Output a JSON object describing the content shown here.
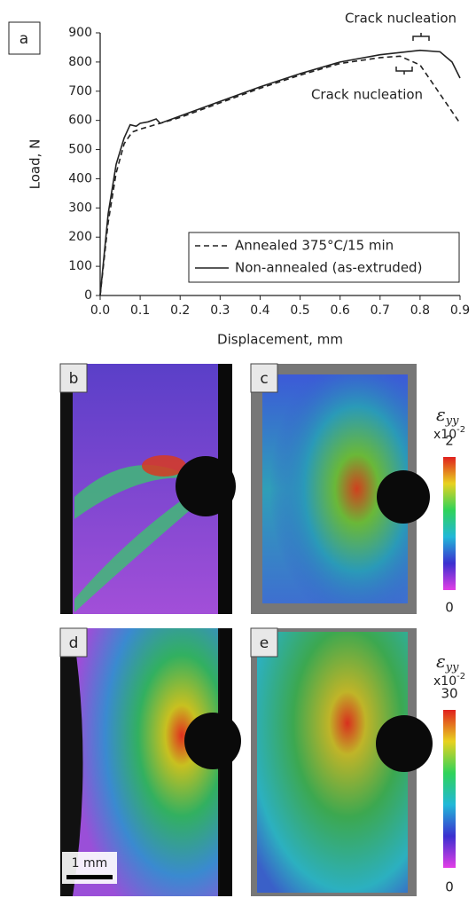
{
  "chart_data": {
    "type": "line",
    "panel_label": "a",
    "x_label": "Displacement, mm",
    "y_label": "Load, N",
    "xlim": [
      0,
      0.9
    ],
    "ylim": [
      0,
      900
    ],
    "xticks": [
      {
        "value": 0,
        "label": "0.0"
      },
      0.1,
      0.2,
      0.3,
      0.4,
      0.5,
      0.6,
      0.7,
      0.8,
      0.9
    ],
    "yticks": [
      0,
      100,
      200,
      300,
      400,
      500,
      600,
      700,
      800,
      900
    ],
    "legend": "lower right",
    "annotations": [
      "Crack nucleation",
      "Crack nucleation"
    ],
    "series": [
      {
        "name": "Annealed 375°C/15 min",
        "color": "#222222",
        "line_style": "dashed",
        "x": [
          0,
          0.02,
          0.04,
          0.06,
          0.08,
          0.1,
          0.15,
          0.2,
          0.3,
          0.4,
          0.5,
          0.6,
          0.7,
          0.75,
          0.8,
          0.85,
          0.9
        ],
        "values": [
          0,
          250,
          420,
          520,
          560,
          570,
          590,
          610,
          660,
          710,
          755,
          795,
          815,
          820,
          790,
          690,
          590
        ]
      },
      {
        "name": "Non-annealed (as-extruded)",
        "color": "#222222",
        "line_style": "solid",
        "x": [
          0,
          0.02,
          0.04,
          0.06,
          0.075,
          0.09,
          0.1,
          0.12,
          0.14,
          0.15,
          0.2,
          0.3,
          0.4,
          0.5,
          0.6,
          0.7,
          0.8,
          0.85,
          0.88,
          0.9
        ],
        "values": [
          0,
          280,
          450,
          540,
          585,
          580,
          590,
          595,
          605,
          590,
          615,
          665,
          715,
          760,
          800,
          825,
          840,
          835,
          800,
          745
        ]
      }
    ]
  },
  "figure": {
    "panels": [
      "b",
      "c",
      "d",
      "e"
    ],
    "scale_bar": "1 mm",
    "colorbars": [
      {
        "symbol": "ε",
        "subscript": "yy",
        "multiplier": "x10",
        "exponent": "-2",
        "max": 2,
        "min": 0
      },
      {
        "symbol": "ε",
        "subscript": "yy",
        "multiplier": "x10",
        "exponent": "-2",
        "max": 30,
        "min": 0
      }
    ]
  }
}
